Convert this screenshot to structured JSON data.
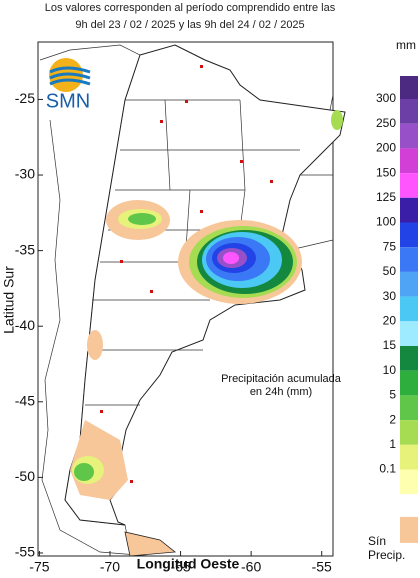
{
  "header": {
    "line1": "Los valores corresponden al período comprendido entre las",
    "line2": "9h del 23 / 02 / 2025  y las 9h del 24 / 02 / 2025"
  },
  "map": {
    "logo": "SMN",
    "xlabel": "Longitud Oeste",
    "ylabel": "Latitud Sur",
    "xlim": [
      -75.1,
      -54.2
    ],
    "ylim": [
      -55.2,
      -21.2
    ],
    "xticks": [
      -75,
      -70,
      -65,
      -60,
      -55
    ],
    "yticks": [
      -25,
      -30,
      -35,
      -40,
      -45,
      -50,
      -55
    ],
    "annotation": [
      "Precipitación acumulada",
      "en 24h (mm)"
    ]
  },
  "legend": {
    "unit": "mm",
    "labels": [
      300,
      250,
      200,
      150,
      125,
      100,
      75,
      50,
      30,
      20,
      15,
      10,
      5,
      2,
      1,
      0.1
    ],
    "colors": [
      "#4d2a82",
      "#6b3fa6",
      "#9850c8",
      "#d23fd6",
      "#ff55ff",
      "#3a1ea8",
      "#2244e6",
      "#3b78f5",
      "#4fa4f5",
      "#4cc8f5",
      "#9eeaff",
      "#14883e",
      "#2eae3c",
      "#5fc64a",
      "#a6dc52",
      "#e6f27a",
      "#ffffb0"
    ],
    "no_precip_color": "#f7c79a",
    "no_precip": [
      "Sín",
      "Precip."
    ]
  }
}
